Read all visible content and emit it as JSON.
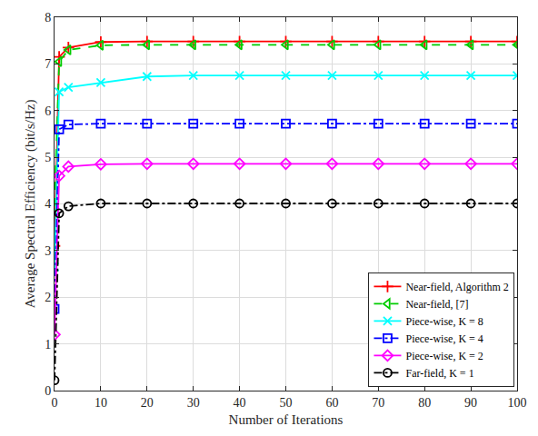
{
  "chart_data": {
    "type": "line",
    "x_label": "Number of Iterations",
    "y_label": "Average Spectral Efficiency (bit/s/Hz)",
    "x": [
      0,
      1,
      3,
      10,
      20,
      30,
      40,
      50,
      60,
      70,
      80,
      90,
      100
    ],
    "series": [
      {
        "name": "Near-field, Algorithm 2",
        "color": "#ff0000",
        "marker": "cross-thin-open",
        "line_style": "solid",
        "values": [
          3.1,
          7.15,
          7.35,
          7.47,
          7.48,
          7.48,
          7.48,
          7.48,
          7.48,
          7.48,
          7.48,
          7.48,
          7.48
        ]
      },
      {
        "name": "Near-field, [7]",
        "color": "#00cc00",
        "marker": "triangle-left-open",
        "line_style": "dash",
        "values": [
          3.95,
          7.05,
          7.3,
          7.4,
          7.41,
          7.41,
          7.41,
          7.41,
          7.41,
          7.41,
          7.41,
          7.41,
          7.41
        ]
      },
      {
        "name": "Piece-wise, K = 8",
        "color": "#00ffff",
        "marker": "x-thin-open",
        "line_style": "solid",
        "values": [
          2.65,
          6.4,
          6.5,
          6.6,
          6.73,
          6.75,
          6.75,
          6.75,
          6.75,
          6.75,
          6.75,
          6.75,
          6.75
        ]
      },
      {
        "name": "Piece-wise, K = 4",
        "color": "#0000ff",
        "marker": "square-open",
        "line_style": "dashdot",
        "values": [
          1.75,
          5.6,
          5.7,
          5.72,
          5.72,
          5.72,
          5.72,
          5.72,
          5.72,
          5.72,
          5.72,
          5.72,
          5.72
        ]
      },
      {
        "name": "Piece-wise, K = 2",
        "color": "#ff00ff",
        "marker": "diamond-open",
        "line_style": "solid",
        "values": [
          1.2,
          4.6,
          4.8,
          4.85,
          4.86,
          4.86,
          4.86,
          4.86,
          4.86,
          4.86,
          4.86,
          4.86,
          4.86
        ]
      },
      {
        "name": "Far-field, K = 1",
        "color": "#000000",
        "marker": "circle-open",
        "line_style": "dashdot",
        "values": [
          0.22,
          3.8,
          3.95,
          4.01,
          4.01,
          4.01,
          4.01,
          4.01,
          4.01,
          4.01,
          4.01,
          4.01,
          4.01
        ]
      }
    ],
    "xlim": [
      0,
      100
    ],
    "xticks": [
      0,
      10,
      20,
      30,
      40,
      50,
      60,
      70,
      80,
      90,
      100
    ],
    "ylim": [
      0,
      8
    ],
    "yticks": [
      0,
      1,
      2,
      3,
      4,
      5,
      6,
      7,
      8
    ],
    "grid": true,
    "legend": "lower right"
  }
}
